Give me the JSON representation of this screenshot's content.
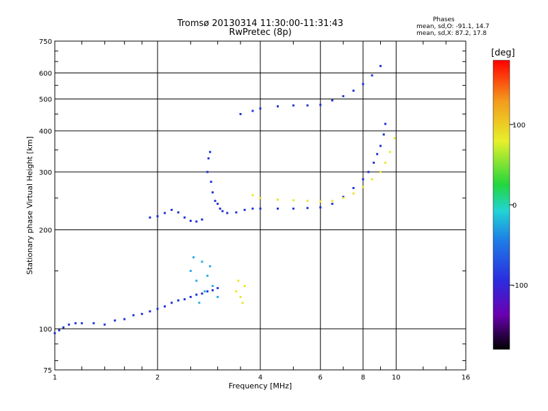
{
  "header": {
    "title_line1": "Tromsø 20130314 11:30:00-11:31:43",
    "title_line2": "RwPretec (8p)",
    "phases_title": "Phases",
    "phases_o": "mean, sd,O: -91.1, 14.7",
    "phases_x": "mean, sd,X:  87.2, 17.8"
  },
  "colorbar": {
    "unit": "[deg]",
    "ticks": [
      {
        "value": 100,
        "label": "100"
      },
      {
        "value": 0,
        "label": "0"
      },
      {
        "value": -100,
        "label": "-100"
      }
    ],
    "range": [
      -180,
      180
    ]
  },
  "chart_data": {
    "type": "scatter",
    "title": "Tromsø 20130314 11:30:00-11:31:43",
    "subtitle": "RwPretec (8p)",
    "xlabel": "Frequency [MHz]",
    "ylabel": "Stationary phase Virtual Height [km]",
    "xscale": "log",
    "yscale": "log",
    "xlim": [
      1,
      16
    ],
    "ylim": [
      75,
      750
    ],
    "x_ticks": [
      1,
      2,
      4,
      6,
      8,
      10,
      16
    ],
    "y_ticks": [
      75,
      100,
      200,
      300,
      400,
      500,
      600,
      750
    ],
    "grid": true,
    "colormap": "rainbow phase (deg)",
    "series": [
      {
        "color": "#1a2fd6",
        "phase_deg": -100,
        "points": [
          [
            1.0,
            97
          ],
          [
            1.03,
            99
          ],
          [
            1.06,
            101
          ],
          [
            1.1,
            103
          ],
          [
            1.15,
            104
          ],
          [
            1.2,
            104
          ],
          [
            1.3,
            104
          ],
          [
            1.4,
            103
          ],
          [
            1.5,
            106
          ],
          [
            1.6,
            107
          ],
          [
            1.7,
            110
          ],
          [
            1.8,
            111
          ],
          [
            1.9,
            113
          ],
          [
            2.0,
            115
          ],
          [
            2.1,
            117
          ],
          [
            2.2,
            120
          ],
          [
            2.3,
            122
          ],
          [
            2.4,
            123
          ],
          [
            2.5,
            125
          ],
          [
            2.6,
            127
          ],
          [
            2.7,
            128
          ],
          [
            2.8,
            130
          ],
          [
            2.9,
            131
          ],
          [
            3.0,
            133
          ],
          [
            1.9,
            218
          ],
          [
            2.0,
            220
          ],
          [
            2.1,
            225
          ],
          [
            2.2,
            230
          ],
          [
            2.3,
            226
          ],
          [
            2.4,
            218
          ],
          [
            2.5,
            213
          ],
          [
            2.6,
            212
          ],
          [
            2.7,
            215
          ],
          [
            2.8,
            300
          ],
          [
            2.82,
            330
          ],
          [
            2.85,
            345
          ],
          [
            2.87,
            280
          ],
          [
            2.9,
            260
          ],
          [
            2.95,
            245
          ],
          [
            3.0,
            240
          ],
          [
            3.05,
            232
          ],
          [
            3.1,
            228
          ],
          [
            3.2,
            225
          ],
          [
            3.4,
            226
          ],
          [
            3.6,
            230
          ],
          [
            3.8,
            232
          ],
          [
            4.0,
            232
          ],
          [
            4.5,
            232
          ],
          [
            5.0,
            232
          ],
          [
            5.5,
            233
          ],
          [
            6.0,
            234
          ],
          [
            6.5,
            240
          ],
          [
            7.0,
            252
          ],
          [
            7.5,
            268
          ],
          [
            8.0,
            285
          ],
          [
            8.3,
            300
          ],
          [
            8.6,
            320
          ],
          [
            8.8,
            340
          ],
          [
            9.0,
            360
          ],
          [
            9.2,
            390
          ],
          [
            9.3,
            420
          ],
          [
            3.5,
            450
          ],
          [
            3.8,
            460
          ],
          [
            4.0,
            468
          ],
          [
            4.5,
            475
          ],
          [
            5.0,
            478
          ],
          [
            5.5,
            478
          ],
          [
            6.0,
            480
          ],
          [
            6.5,
            495
          ],
          [
            7.0,
            510
          ],
          [
            7.5,
            530
          ],
          [
            8.0,
            555
          ],
          [
            8.5,
            590
          ],
          [
            9.0,
            630
          ]
        ]
      },
      {
        "color": "#27a9e6",
        "phase_deg": -70,
        "points": [
          [
            2.5,
            150
          ],
          [
            2.6,
            140
          ],
          [
            2.7,
            160
          ],
          [
            2.75,
            130
          ],
          [
            2.8,
            145
          ],
          [
            2.85,
            155
          ],
          [
            2.9,
            135
          ],
          [
            3.0,
            125
          ],
          [
            2.65,
            120
          ],
          [
            2.55,
            165
          ]
        ]
      },
      {
        "color": "#e9e62a",
        "phase_deg": 100,
        "points": [
          [
            3.8,
            255
          ],
          [
            4.0,
            250
          ],
          [
            4.5,
            247
          ],
          [
            5.0,
            246
          ],
          [
            5.5,
            245
          ],
          [
            6.0,
            244
          ],
          [
            6.5,
            245
          ],
          [
            7.0,
            250
          ],
          [
            7.5,
            258
          ],
          [
            8.0,
            270
          ],
          [
            8.5,
            285
          ],
          [
            9.0,
            300
          ],
          [
            9.3,
            320
          ],
          [
            9.6,
            345
          ],
          [
            9.9,
            380
          ],
          [
            3.4,
            130
          ],
          [
            3.5,
            125
          ],
          [
            3.6,
            135
          ],
          [
            3.55,
            120
          ],
          [
            3.45,
            140
          ]
        ]
      }
    ]
  }
}
